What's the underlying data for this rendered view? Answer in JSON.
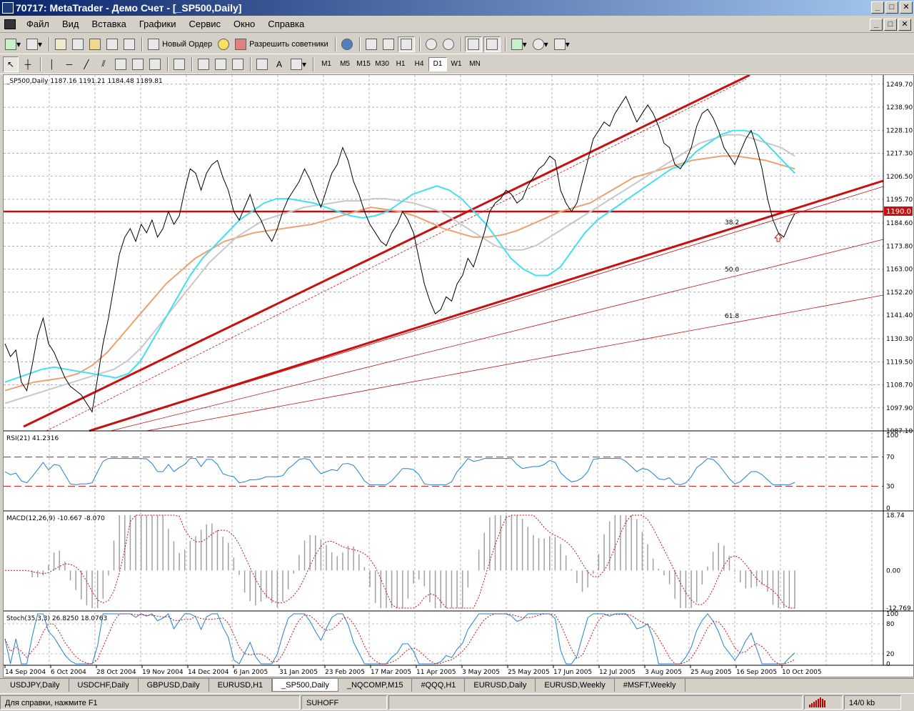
{
  "window": {
    "title": "70717: MetaTrader - Демо Счет - [_SP500,Daily]",
    "buttons": [
      "_",
      "□",
      "✕"
    ]
  },
  "menu": {
    "items": [
      "Файл",
      "Вид",
      "Вставка",
      "Графики",
      "Сервис",
      "Окно",
      "Справка"
    ]
  },
  "toolbar1": {
    "new_order_label": "Новый Ордер",
    "expert_label": "Разрешить советники"
  },
  "toolbar2": {
    "timeframes": [
      "M1",
      "M5",
      "M15",
      "M30",
      "H1",
      "H4",
      "D1",
      "W1",
      "MN"
    ],
    "active_timeframe": "D1",
    "text_tool": "A"
  },
  "chart": {
    "main_header": "_SP500,Daily  1187.16 1191.21 1184.48 1189.81",
    "current_price": "1190.0",
    "fib_levels": [
      "38.2",
      "50.0",
      "61.8"
    ],
    "price_ticks": [
      "1249.70",
      "1238.90",
      "1228.10",
      "1217.30",
      "1206.50",
      "1195.70",
      "1184.60",
      "1173.80",
      "1163.00",
      "1152.20",
      "1141.40",
      "1130.30",
      "1119.50",
      "1108.70",
      "1097.90",
      "1087.10"
    ],
    "rsi_header": "RSI(21) 41.2316",
    "rsi_ticks": [
      "100",
      "70",
      "30",
      "0"
    ],
    "macd_header": "MACD(12,26,9) -10.667 -8.070",
    "macd_ticks": [
      "18.74",
      "0.00",
      "-12.769"
    ],
    "stoch_header": "Stoch(35,3,3) 26.8250 18.0763",
    "stoch_ticks": [
      "100",
      "80",
      "20",
      "0"
    ],
    "date_ticks": [
      "14 Sep 2004",
      "6 Oct 2004",
      "28 Oct 2004",
      "19 Nov 2004",
      "14 Dec 2004",
      "6 Jan 2005",
      "31 Jan 2005",
      "23 Feb 2005",
      "17 Mar 2005",
      "11 Apr 2005",
      "3 May 2005",
      "25 May 2005",
      "17 Jun 2005",
      "12 Jul 2005",
      "3 Aug 2005",
      "25 Aug 2005",
      "16 Sep 2005",
      "10 Oct 2005"
    ]
  },
  "tabs": [
    "USDJPY,Daily",
    "USDCHF,Daily",
    "GBPUSD,Daily",
    "EURUSD,H1",
    "_SP500,Daily",
    "_NQCOMP,M15",
    "#QQQ,H1",
    "EURUSD,Daily",
    "EURUSD,Weekly",
    "#MSFT,Weekly"
  ],
  "active_tab": "_SP500,Daily",
  "status": {
    "help": "Для справки, нажмите F1",
    "profile": "SUHOFF",
    "traffic": "14/0 kb"
  },
  "chart_data": {
    "type": "line",
    "title": "_SP500,Daily",
    "ylim": [
      1087.1,
      1252.0
    ],
    "close": [
      1128,
      1122,
      1125,
      1110,
      1106,
      1118,
      1132,
      1140,
      1128,
      1124,
      1118,
      1112,
      1108,
      1106,
      1104,
      1100,
      1096,
      1112,
      1128,
      1140,
      1155,
      1170,
      1178,
      1182,
      1176,
      1184,
      1180,
      1186,
      1178,
      1182,
      1190,
      1184,
      1188,
      1200,
      1210,
      1208,
      1200,
      1208,
      1212,
      1214,
      1206,
      1200,
      1190,
      1186,
      1192,
      1198,
      1190,
      1186,
      1180,
      1176,
      1182,
      1190,
      1196,
      1200,
      1204,
      1210,
      1205,
      1198,
      1192,
      1200,
      1208,
      1212,
      1220,
      1214,
      1204,
      1198,
      1190,
      1184,
      1180,
      1176,
      1174,
      1180,
      1184,
      1190,
      1186,
      1180,
      1168,
      1156,
      1148,
      1142,
      1144,
      1150,
      1148,
      1156,
      1160,
      1168,
      1164,
      1172,
      1180,
      1190,
      1194,
      1196,
      1200,
      1198,
      1194,
      1196,
      1202,
      1206,
      1210,
      1212,
      1216,
      1214,
      1200,
      1194,
      1190,
      1194,
      1204,
      1214,
      1224,
      1228,
      1232,
      1230,
      1236,
      1240,
      1244,
      1238,
      1232,
      1236,
      1240,
      1236,
      1230,
      1222,
      1220,
      1212,
      1210,
      1214,
      1220,
      1230,
      1236,
      1238,
      1234,
      1228,
      1220,
      1216,
      1212,
      1218,
      1224,
      1228,
      1220,
      1210,
      1196,
      1186,
      1180,
      1178,
      1184,
      1189
    ],
    "ma_fast": [
      1110,
      1112,
      1114,
      1116,
      1117,
      1116,
      1115,
      1114,
      1113,
      1112,
      1114,
      1120,
      1130,
      1140,
      1150,
      1160,
      1168,
      1174,
      1180,
      1186,
      1190,
      1194,
      1196,
      1196,
      1195,
      1194,
      1192,
      1190,
      1188,
      1187,
      1188,
      1190,
      1194,
      1198,
      1200,
      1202,
      1200,
      1196,
      1190,
      1184,
      1176,
      1168,
      1163,
      1160,
      1160,
      1164,
      1172,
      1180,
      1186,
      1190,
      1194,
      1198,
      1202,
      1206,
      1210,
      1212,
      1218,
      1222,
      1226,
      1228,
      1228,
      1226,
      1220,
      1214,
      1208
    ],
    "ma_mid": [
      1100,
      1102,
      1104,
      1106,
      1108,
      1110,
      1112,
      1114,
      1116,
      1120,
      1126,
      1134,
      1142,
      1150,
      1158,
      1166,
      1172,
      1178,
      1182,
      1186,
      1188,
      1190,
      1192,
      1193,
      1194,
      1195,
      1195,
      1196,
      1196,
      1195,
      1194,
      1192,
      1190,
      1186,
      1182,
      1178,
      1174,
      1172,
      1172,
      1174,
      1178,
      1182,
      1186,
      1190,
      1194,
      1198,
      1202,
      1206,
      1210,
      1214,
      1218,
      1222,
      1224,
      1226,
      1226,
      1224,
      1222,
      1220,
      1216
    ],
    "ma_slow": [
      1106,
      1108,
      1110,
      1111,
      1112,
      1114,
      1118,
      1124,
      1132,
      1140,
      1148,
      1156,
      1162,
      1168,
      1172,
      1176,
      1178,
      1180,
      1181,
      1182,
      1183,
      1184,
      1186,
      1188,
      1190,
      1192,
      1191,
      1190,
      1188,
      1185,
      1182,
      1180,
      1178,
      1178,
      1179,
      1181,
      1184,
      1187,
      1190,
      1192,
      1194,
      1198,
      1202,
      1206,
      1208,
      1210,
      1212,
      1214,
      1215,
      1216,
      1216,
      1215,
      1214,
      1212,
      1210
    ]
  }
}
